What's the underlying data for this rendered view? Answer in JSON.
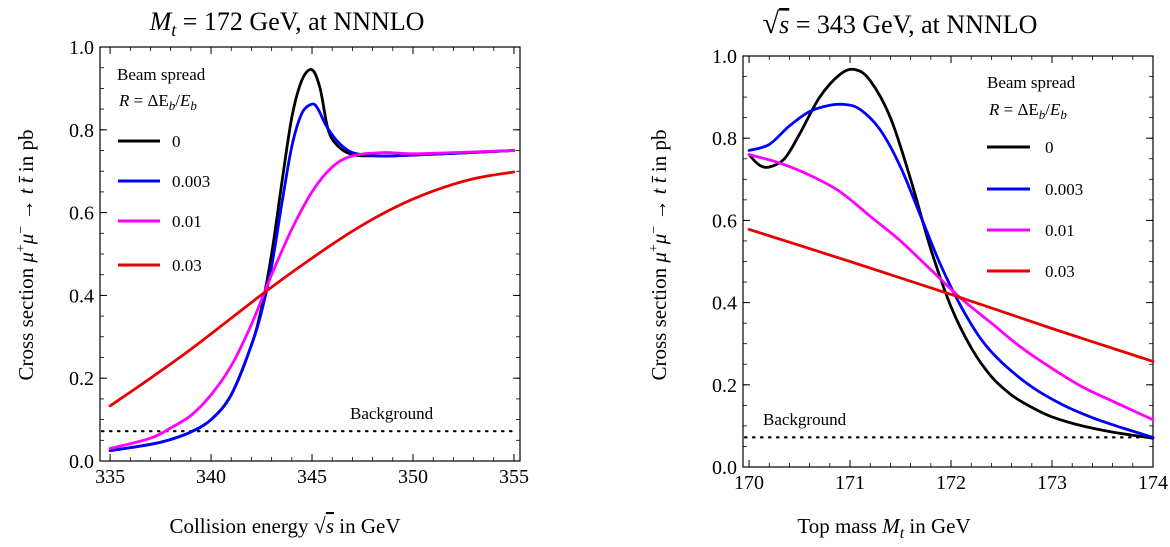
{
  "chart_data": [
    {
      "type": "line",
      "title": "Mₜ = 172 GeV, at NNNLO",
      "xlabel": "Collision energy √s in GeV",
      "ylabel": "Cross section μ⁺μ⁻ → tt̄ in pb",
      "xlim": [
        334.5,
        355.3
      ],
      "ylim": [
        0.0,
        1.0
      ],
      "xticks": [
        "335",
        "340",
        "345",
        "350",
        "355"
      ],
      "yticks": [
        "0.0",
        "0.2",
        "0.4",
        "0.6",
        "0.8",
        "1.0"
      ],
      "legend_title": "Beam spread",
      "legend_subtitle": "R = ΔE_b/E_b",
      "legend_position": "top-left",
      "background_label": "Background",
      "background_level": 0.072,
      "series": [
        {
          "name": "0",
          "color": "#000000",
          "x": [
            335,
            337,
            338,
            339,
            340,
            341,
            342,
            342.5,
            343,
            343.5,
            344,
            344.5,
            345,
            345.4,
            345.8,
            346.3,
            347,
            348,
            349,
            350,
            352,
            355
          ],
          "y": [
            0.025,
            0.04,
            0.052,
            0.07,
            0.1,
            0.16,
            0.28,
            0.37,
            0.5,
            0.67,
            0.83,
            0.92,
            0.945,
            0.9,
            0.8,
            0.76,
            0.74,
            0.737,
            0.737,
            0.739,
            0.743,
            0.75
          ]
        },
        {
          "name": "0.003",
          "color": "#0000ff",
          "x": [
            335,
            337,
            338,
            339,
            340,
            341,
            342,
            342.5,
            343,
            343.5,
            344,
            344.5,
            345,
            345.3,
            345.7,
            346.3,
            347,
            348,
            349,
            350,
            352,
            355
          ],
          "y": [
            0.025,
            0.04,
            0.052,
            0.07,
            0.1,
            0.16,
            0.28,
            0.36,
            0.47,
            0.62,
            0.76,
            0.84,
            0.862,
            0.85,
            0.81,
            0.77,
            0.745,
            0.738,
            0.737,
            0.739,
            0.743,
            0.75
          ]
        },
        {
          "name": "0.01",
          "color": "#ff00ff",
          "x": [
            335,
            337,
            338,
            339,
            340,
            341,
            342,
            343,
            344,
            345,
            346,
            347,
            348.5,
            350,
            352,
            355
          ],
          "y": [
            0.03,
            0.055,
            0.08,
            0.11,
            0.16,
            0.23,
            0.33,
            0.45,
            0.56,
            0.65,
            0.71,
            0.737,
            0.745,
            0.742,
            0.745,
            0.75
          ]
        },
        {
          "name": "0.03",
          "color": "#e60000",
          "x": [
            335,
            337,
            339,
            341,
            343,
            345,
            347,
            349,
            351,
            353,
            355
          ],
          "y": [
            0.133,
            0.2,
            0.27,
            0.345,
            0.42,
            0.49,
            0.555,
            0.61,
            0.652,
            0.682,
            0.698
          ]
        }
      ]
    },
    {
      "type": "line",
      "title": "√s = 343 GeV, at NNNLO",
      "xlabel": "Top mass Mₜ in GeV",
      "ylabel": "Cross section μ⁺μ⁻ → tt̄ in pb",
      "xlim": [
        169.94,
        174.0
      ],
      "ylim": [
        0.0,
        1.0
      ],
      "xticks": [
        "170",
        "171",
        "172",
        "173",
        "174"
      ],
      "yticks": [
        "0.0",
        "0.2",
        "0.4",
        "0.6",
        "0.8",
        "1.0"
      ],
      "legend_title": "Beam spread",
      "legend_subtitle": "R = ΔE_b/E_b",
      "legend_position": "top-right",
      "background_label": "Background",
      "background_level": 0.072,
      "series": [
        {
          "name": "0",
          "color": "#000000",
          "x": [
            170,
            170.1,
            170.2,
            170.35,
            170.5,
            170.7,
            170.9,
            171.05,
            171.2,
            171.4,
            171.6,
            171.8,
            172,
            172.2,
            172.4,
            172.6,
            172.8,
            173,
            173.3,
            173.6,
            174
          ],
          "y": [
            0.76,
            0.735,
            0.73,
            0.75,
            0.81,
            0.9,
            0.955,
            0.967,
            0.94,
            0.85,
            0.7,
            0.53,
            0.39,
            0.29,
            0.22,
            0.175,
            0.145,
            0.122,
            0.1,
            0.085,
            0.07
          ]
        },
        {
          "name": "0.003",
          "color": "#0000ff",
          "x": [
            170,
            170.2,
            170.4,
            170.6,
            170.8,
            170.95,
            171.1,
            171.3,
            171.5,
            171.7,
            171.9,
            172.1,
            172.3,
            172.5,
            172.8,
            173.1,
            173.4,
            173.7,
            174
          ],
          "y": [
            0.77,
            0.785,
            0.83,
            0.865,
            0.88,
            0.882,
            0.87,
            0.82,
            0.73,
            0.61,
            0.49,
            0.39,
            0.31,
            0.255,
            0.195,
            0.152,
            0.12,
            0.095,
            0.072
          ]
        },
        {
          "name": "0.01",
          "color": "#ff00ff",
          "x": [
            170,
            170.3,
            170.6,
            170.9,
            171.2,
            171.5,
            171.8,
            172.1,
            172.4,
            172.7,
            173,
            173.3,
            173.6,
            174
          ],
          "y": [
            0.76,
            0.74,
            0.71,
            0.67,
            0.61,
            0.55,
            0.48,
            0.41,
            0.35,
            0.29,
            0.24,
            0.195,
            0.16,
            0.115
          ]
        },
        {
          "name": "0.03",
          "color": "#e60000",
          "x": [
            170,
            171,
            172,
            173,
            174
          ],
          "y": [
            0.578,
            0.5,
            0.42,
            0.337,
            0.257
          ]
        }
      ]
    }
  ]
}
